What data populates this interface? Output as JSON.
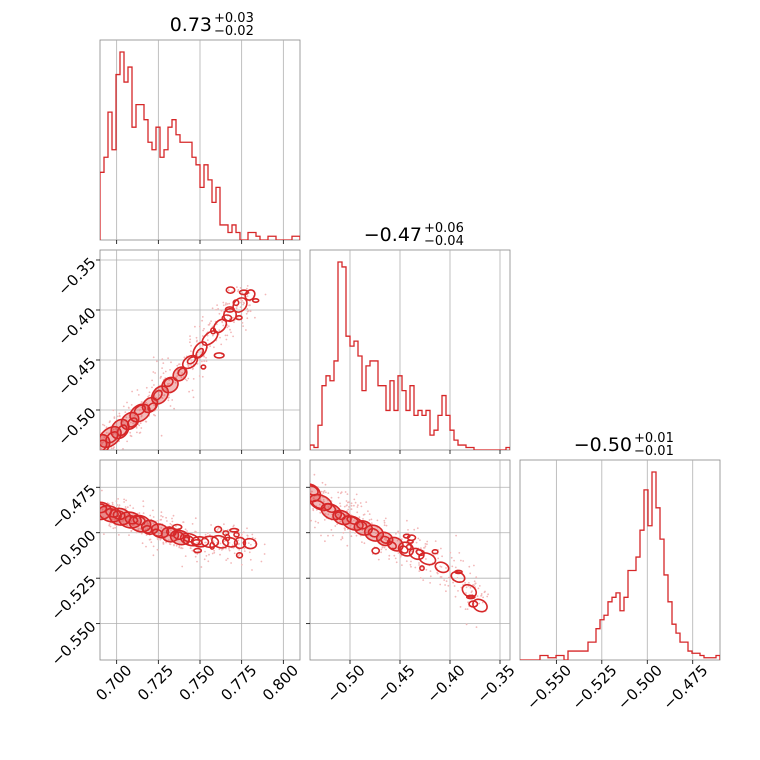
{
  "chart_data": {
    "type": "corner",
    "color": "#d62728",
    "parameters": [
      {
        "median": "0.73",
        "plus": "+0.03",
        "minus": "−0.02",
        "range": [
          0.69,
          0.81
        ],
        "ticks": [
          0.7,
          0.725,
          0.75,
          0.775,
          0.8
        ],
        "tick_labels": [
          "0.700",
          "0.725",
          "0.750",
          "0.775",
          "0.800"
        ]
      },
      {
        "median": "−0.47",
        "plus": "+0.06",
        "minus": "−0.04",
        "range": [
          -0.54,
          -0.34
        ],
        "ticks": [
          -0.5,
          -0.45,
          -0.4,
          -0.35
        ],
        "tick_labels": [
          "−0.50",
          "−0.45",
          "−0.40",
          "−0.35"
        ]
      },
      {
        "median": "−0.50",
        "plus": "+0.01",
        "minus": "−0.01",
        "range": [
          -0.57,
          -0.46
        ],
        "ticks": [
          -0.55,
          -0.525,
          -0.5,
          -0.475
        ],
        "tick_labels": [
          "−0.550",
          "−0.525",
          "−0.500",
          "−0.475"
        ]
      }
    ],
    "histograms": [
      {
        "edges_start": 0.69,
        "bin_width": 0.0024,
        "counts": [
          18,
          22,
          34,
          24,
          44,
          50,
          42,
          46,
          30,
          36,
          36,
          32,
          26,
          24,
          30,
          22,
          24,
          30,
          32,
          28,
          26,
          26,
          26,
          22,
          20,
          14,
          20,
          16,
          10,
          14,
          4,
          4,
          2,
          4,
          2,
          0,
          0,
          2,
          2,
          1,
          0,
          0,
          1,
          1,
          0,
          0,
          0,
          0,
          1,
          1
        ]
      },
      {
        "edges_start": -0.54,
        "bin_width": 0.004,
        "counts": [
          2,
          1,
          10,
          26,
          30,
          28,
          36,
          76,
          74,
          46,
          42,
          44,
          38,
          24,
          34,
          36,
          36,
          26,
          26,
          16,
          28,
          16,
          30,
          24,
          16,
          26,
          14,
          16,
          14,
          16,
          6,
          8,
          14,
          22,
          14,
          8,
          4,
          2,
          2,
          1,
          1,
          0,
          0,
          0,
          0,
          0,
          0,
          0,
          0,
          1
        ]
      },
      {
        "edges_start": -0.57,
        "bin_width": 0.0022,
        "counts": [
          0,
          0,
          0,
          0,
          0,
          2,
          2,
          1,
          1,
          2,
          2,
          0,
          4,
          4,
          4,
          4,
          4,
          8,
          8,
          14,
          18,
          20,
          26,
          28,
          30,
          22,
          28,
          40,
          40,
          46,
          58,
          76,
          60,
          84,
          68,
          54,
          38,
          26,
          16,
          12,
          8,
          8,
          4,
          3,
          3,
          2,
          1,
          1,
          1,
          2
        ]
      }
    ],
    "pairs": [
      {
        "x_param": 0,
        "y_param": 1,
        "ridge": [
          [
            0.69,
            -0.535
          ],
          [
            0.705,
            -0.515
          ],
          [
            0.72,
            -0.495
          ],
          [
            0.735,
            -0.47
          ],
          [
            0.75,
            -0.44
          ],
          [
            0.765,
            -0.41
          ],
          [
            0.78,
            -0.385
          ]
        ],
        "width": 0.01
      },
      {
        "x_param": 0,
        "y_param": 2,
        "ridge": [
          [
            0.69,
            -0.488
          ],
          [
            0.705,
            -0.492
          ],
          [
            0.72,
            -0.497
          ],
          [
            0.735,
            -0.502
          ],
          [
            0.75,
            -0.505
          ],
          [
            0.765,
            -0.505
          ],
          [
            0.78,
            -0.506
          ]
        ],
        "width": 0.01
      },
      {
        "x_param": 1,
        "y_param": 2,
        "ridge": [
          [
            -0.54,
            -0.478
          ],
          [
            -0.52,
            -0.488
          ],
          [
            -0.5,
            -0.494
          ],
          [
            -0.48,
            -0.499
          ],
          [
            -0.46,
            -0.505
          ],
          [
            -0.44,
            -0.51
          ],
          [
            -0.42,
            -0.515
          ],
          [
            -0.39,
            -0.525
          ],
          [
            -0.37,
            -0.54
          ]
        ],
        "width": 0.011
      }
    ]
  }
}
